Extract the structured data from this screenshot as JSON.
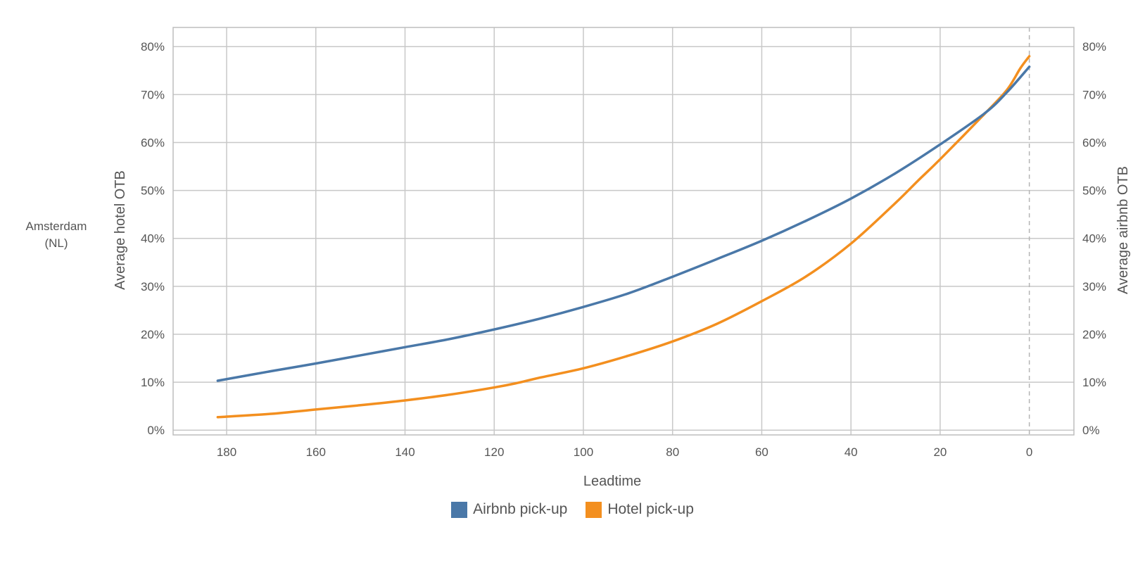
{
  "row_label": {
    "line1": "Amsterdam",
    "line2": "(NL)"
  },
  "chart_data": {
    "type": "line",
    "title": "",
    "xlabel": "Leadtime",
    "ylabel_left": "Average hotel OTB",
    "ylabel_right": "Average airbnb OTB",
    "xlim": [
      192,
      -10
    ],
    "x_reversed": true,
    "x_ticks": [
      180,
      160,
      140,
      120,
      100,
      80,
      60,
      40,
      20,
      0
    ],
    "x_tick_labels": [
      "180",
      "160",
      "140",
      "120",
      "100",
      "80",
      "60",
      "40",
      "20",
      "0"
    ],
    "ylim": [
      -1,
      84
    ],
    "y_ticks": [
      0,
      10,
      20,
      30,
      40,
      50,
      60,
      70,
      80
    ],
    "y_tick_labels": [
      "0%",
      "10%",
      "20%",
      "30%",
      "40%",
      "50%",
      "60%",
      "70%",
      "80%"
    ],
    "grid": true,
    "reference_line_x": 0,
    "legend_position": "bottom",
    "series": [
      {
        "name": "Airbnb pick-up",
        "color": "#4a78a8",
        "x": [
          182,
          170,
          160,
          150,
          140,
          130,
          120,
          110,
          100,
          90,
          80,
          70,
          60,
          50,
          40,
          30,
          20,
          10,
          5,
          0
        ],
        "y": [
          10.3,
          12.3,
          13.9,
          15.6,
          17.3,
          19.0,
          21.0,
          23.2,
          25.7,
          28.5,
          32.0,
          35.7,
          39.5,
          43.7,
          48.3,
          53.6,
          59.6,
          66.1,
          70.5,
          75.8
        ]
      },
      {
        "name": "Hotel pick-up",
        "color": "#f38f1f",
        "x": [
          182,
          170,
          160,
          150,
          140,
          130,
          120,
          115,
          110,
          100,
          90,
          80,
          70,
          60,
          50,
          40,
          30,
          25,
          20,
          10,
          5,
          2,
          0
        ],
        "y": [
          2.7,
          3.4,
          4.3,
          5.2,
          6.2,
          7.4,
          8.9,
          9.8,
          10.9,
          12.9,
          15.5,
          18.5,
          22.2,
          26.9,
          32.1,
          38.9,
          47.4,
          52.0,
          56.5,
          66.0,
          71.0,
          75.5,
          78.0
        ]
      }
    ]
  }
}
